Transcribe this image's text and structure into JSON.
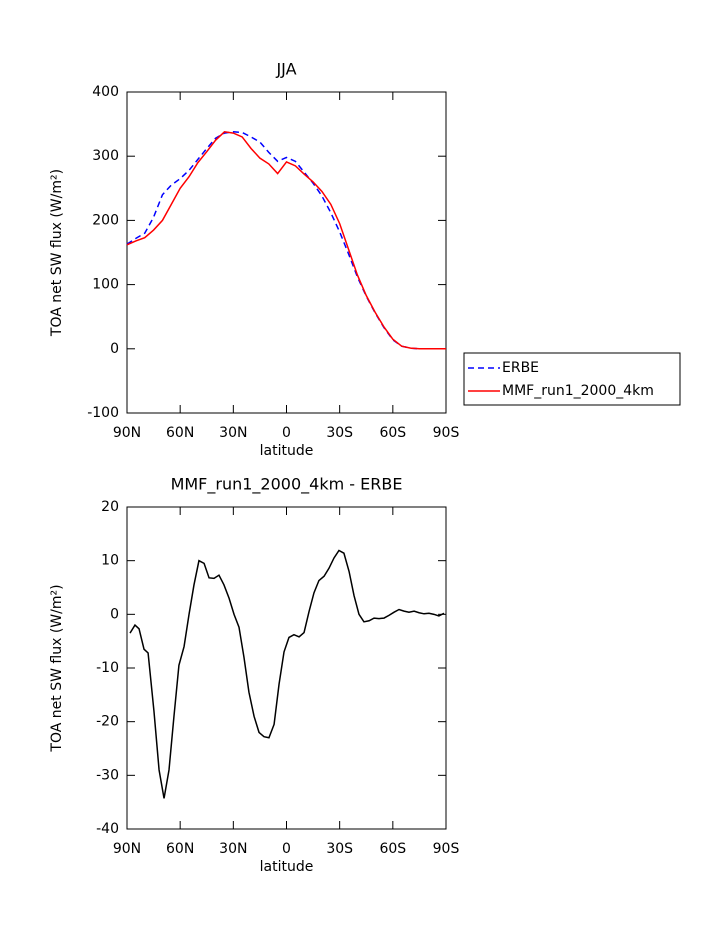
{
  "chart_data": [
    {
      "type": "line",
      "title": "JJA",
      "xlabel": "latitude",
      "ylabel": "TOA net SW flux (W/m²)",
      "xlim": [
        90,
        -90
      ],
      "xticks": [
        {
          "value": 90,
          "label": "90N"
        },
        {
          "value": 60,
          "label": "60N"
        },
        {
          "value": 30,
          "label": "30N"
        },
        0,
        {
          "value": -30,
          "label": "30S"
        },
        {
          "value": -60,
          "label": "60S"
        },
        {
          "value": -90,
          "label": "90S"
        }
      ],
      "ylim": [
        -100,
        400
      ],
      "yticks": [
        -100,
        0,
        100,
        200,
        300,
        400
      ],
      "legend": "right",
      "x": [
        90,
        85,
        80,
        75,
        70,
        65,
        60,
        55,
        50,
        45,
        40,
        35,
        30,
        25,
        20,
        15,
        10,
        5,
        0,
        -5,
        -10,
        -15,
        -20,
        -25,
        -30,
        -35,
        -40,
        -45,
        -50,
        -55,
        -60,
        -65,
        -70,
        -75,
        -80,
        -85,
        -90
      ],
      "series": [
        {
          "name": "ERBE",
          "color": "#0000ff",
          "linestyle": "dashed",
          "values": [
            163,
            172,
            180,
            205,
            240,
            255,
            265,
            278,
            295,
            312,
            328,
            336,
            338,
            337,
            330,
            322,
            306,
            292,
            298,
            292,
            275,
            258,
            238,
            212,
            182,
            148,
            112,
            82,
            56,
            33,
            14,
            4,
            1,
            0,
            0,
            0,
            0
          ]
        },
        {
          "name": "MMF_run1_2000_4km",
          "color": "#ff0000",
          "linestyle": "solid",
          "values": [
            162,
            168,
            173,
            185,
            200,
            225,
            250,
            268,
            290,
            307,
            325,
            338,
            336,
            330,
            312,
            297,
            288,
            273,
            291,
            285,
            272,
            260,
            245,
            225,
            195,
            155,
            115,
            83,
            57,
            34,
            15,
            4,
            1,
            0,
            0,
            0,
            0
          ]
        }
      ]
    },
    {
      "type": "line",
      "title": "MMF_run1_2000_4km - ERBE",
      "xlabel": "latitude",
      "ylabel": "TOA net SW flux (W/m²)",
      "xlim": [
        90,
        -90
      ],
      "xticks": [
        {
          "value": 90,
          "label": "90N"
        },
        {
          "value": 60,
          "label": "60N"
        },
        {
          "value": 30,
          "label": "30N"
        },
        0,
        {
          "value": -30,
          "label": "30S"
        },
        {
          "value": -60,
          "label": "60S"
        },
        {
          "value": -90,
          "label": "90S"
        }
      ],
      "ylim": [
        -40,
        20
      ],
      "yticks": [
        -40,
        -30,
        -20,
        -10,
        0,
        10,
        20
      ],
      "x": [
        88.3,
        85.5,
        83.2,
        80.4,
        78.1,
        74.8,
        71.9,
        69.1,
        66.3,
        63.5,
        60.7,
        57.8,
        55.0,
        52.2,
        49.4,
        46.5,
        43.7,
        40.9,
        38.1,
        35.3,
        32.4,
        29.6,
        26.8,
        24.0,
        21.2,
        18.3,
        15.5,
        12.7,
        9.9,
        7.0,
        4.2,
        1.4,
        -1.4,
        -4.2,
        -7.1,
        -9.9,
        -12.7,
        -15.5,
        -18.3,
        -21.2,
        -24.0,
        -26.8,
        -29.6,
        -32.4,
        -35.3,
        -38.1,
        -40.9,
        -43.7,
        -46.6,
        -49.4,
        -52.2,
        -55.0,
        -57.8,
        -60.7,
        -63.5,
        -66.3,
        -69.1,
        -72.0,
        -74.8,
        -77.6,
        -80.4,
        -83.2,
        -86.0,
        -88.9
      ],
      "series": [
        {
          "color": "#000000",
          "linestyle": "solid",
          "values": [
            -3.5,
            -2,
            -2.7,
            -6.5,
            -7.2,
            -18,
            -29,
            -34.3,
            -29,
            -19,
            -9.5,
            -6,
            0,
            5.5,
            10,
            9.5,
            6.8,
            6.7,
            7.3,
            5.5,
            3,
            0,
            -2.4,
            -8,
            -14.5,
            -19,
            -22,
            -22.8,
            -23,
            -20.5,
            -13,
            -7,
            -4.3,
            -3.8,
            -4.2,
            -3.4,
            0.5,
            4,
            6.3,
            7.1,
            8.6,
            10.5,
            11.9,
            11.4,
            8,
            3.5,
            0,
            -1.4,
            -1.2,
            -0.7,
            -0.8,
            -0.7,
            -0.2,
            0.4,
            0.9,
            0.6,
            0.4,
            0.6,
            0.3,
            0.1,
            0.2,
            0,
            -0.3,
            0.2
          ]
        }
      ]
    }
  ]
}
